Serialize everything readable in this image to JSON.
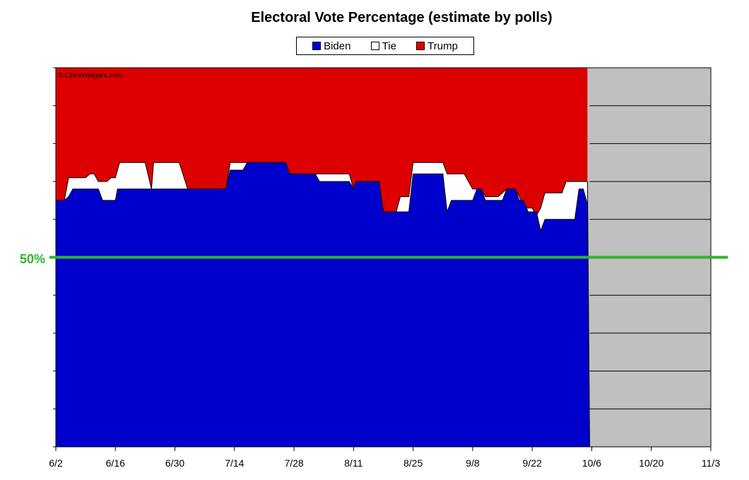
{
  "chart_data": {
    "type": "area",
    "title": "Electoral Vote Percentage (estimate by polls)",
    "copyright": "© ChrisWeigant.com",
    "legend": [
      {
        "name": "Biden",
        "color": "#0000cc"
      },
      {
        "name": "Tie",
        "color": "#ffffff"
      },
      {
        "name": "Trump",
        "color": "#dd0000"
      }
    ],
    "legend_placement": "top-center",
    "x_tick_labels": [
      "6/2",
      "6/16",
      "6/30",
      "7/14",
      "7/28",
      "8/11",
      "8/25",
      "9/8",
      "9/22",
      "10/6",
      "10/20",
      "11/3"
    ],
    "x_range_days": [
      0,
      154
    ],
    "y_range_pct": [
      0,
      100
    ],
    "reference_line": {
      "label": "50%",
      "value": 50,
      "color": "#2db52d"
    },
    "future_region_color": "#c0c0c0",
    "grid": true,
    "series": [
      {
        "name": "Biden",
        "points": [
          [
            0,
            65
          ],
          [
            2,
            65
          ],
          [
            3,
            66
          ],
          [
            4,
            68
          ],
          [
            9,
            68
          ],
          [
            10,
            68
          ],
          [
            11,
            65
          ],
          [
            14,
            65
          ],
          [
            14.5,
            68
          ],
          [
            22,
            68
          ],
          [
            22.5,
            68
          ],
          [
            23,
            68
          ],
          [
            31,
            68
          ],
          [
            40,
            68
          ],
          [
            41,
            73
          ],
          [
            44,
            73
          ],
          [
            45,
            75
          ],
          [
            54,
            75
          ],
          [
            55,
            72
          ],
          [
            61,
            72
          ],
          [
            62,
            70
          ],
          [
            69,
            70
          ],
          [
            70,
            68
          ],
          [
            70.5,
            70
          ],
          [
            76,
            70
          ],
          [
            77,
            62
          ],
          [
            82,
            62
          ],
          [
            83,
            62
          ],
          [
            84,
            72
          ],
          [
            91,
            72
          ],
          [
            92,
            62
          ],
          [
            93,
            65
          ],
          [
            98,
            65
          ],
          [
            99,
            68
          ],
          [
            100,
            68
          ],
          [
            101,
            65
          ],
          [
            105,
            65
          ],
          [
            106,
            68
          ],
          [
            108,
            68
          ],
          [
            109,
            65
          ],
          [
            110,
            65
          ],
          [
            111,
            62
          ],
          [
            113,
            62
          ],
          [
            114,
            57
          ],
          [
            115,
            60
          ],
          [
            120,
            60
          ],
          [
            122,
            60
          ],
          [
            123,
            68
          ],
          [
            124,
            68
          ],
          [
            125,
            64
          ],
          [
            125.5,
            0
          ]
        ]
      },
      {
        "name": "Tie",
        "points": [
          [
            0,
            65
          ],
          [
            2,
            65
          ],
          [
            3,
            71
          ],
          [
            7,
            71
          ],
          [
            8,
            72
          ],
          [
            9,
            72
          ],
          [
            10,
            70
          ],
          [
            12,
            70
          ],
          [
            13,
            71
          ],
          [
            14,
            71
          ],
          [
            15,
            75
          ],
          [
            21,
            75
          ],
          [
            22.5,
            68
          ],
          [
            23,
            75
          ],
          [
            29,
            75
          ],
          [
            31,
            68
          ],
          [
            40,
            68
          ],
          [
            41,
            75
          ],
          [
            45,
            75
          ],
          [
            54,
            75
          ],
          [
            55,
            72
          ],
          [
            61,
            72
          ],
          [
            62,
            72
          ],
          [
            69,
            72
          ],
          [
            70,
            68
          ],
          [
            70.5,
            70
          ],
          [
            76,
            70
          ],
          [
            77,
            62
          ],
          [
            80,
            62
          ],
          [
            81,
            66
          ],
          [
            83,
            66
          ],
          [
            84,
            75
          ],
          [
            91,
            75
          ],
          [
            92,
            72
          ],
          [
            96,
            72
          ],
          [
            98,
            68
          ],
          [
            99,
            68
          ],
          [
            100,
            68
          ],
          [
            101,
            66
          ],
          [
            104,
            66
          ],
          [
            106,
            68
          ],
          [
            107,
            68
          ],
          [
            108,
            68
          ],
          [
            109,
            66
          ],
          [
            110,
            63
          ],
          [
            112,
            63
          ],
          [
            113,
            61
          ],
          [
            114,
            63
          ],
          [
            115,
            67
          ],
          [
            119,
            67
          ],
          [
            120,
            70
          ],
          [
            123,
            70
          ],
          [
            124,
            70
          ],
          [
            125,
            70
          ],
          [
            125.5,
            0
          ]
        ]
      },
      {
        "name": "Trump",
        "value": 100
      }
    ]
  }
}
